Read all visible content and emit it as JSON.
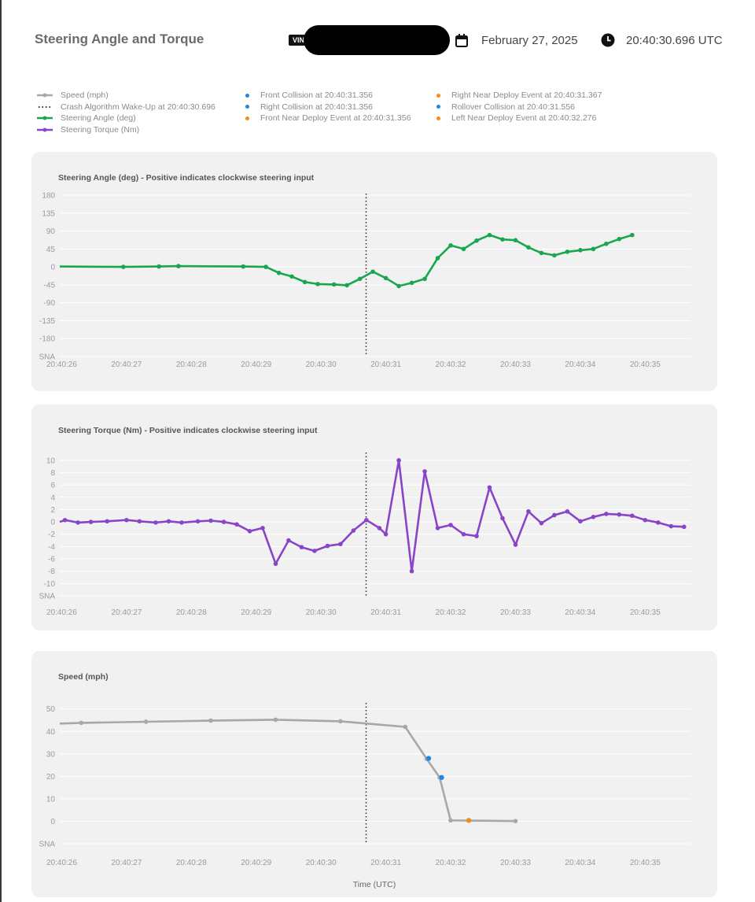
{
  "header": {
    "title": "Steering Angle and Torque",
    "vin_label": "VIN",
    "date": "February 27, 2025",
    "time": "20:40:30.696 UTC"
  },
  "legend": {
    "series": [
      {
        "label": "Speed (mph)",
        "color": "#a8a8a8",
        "style": "line"
      },
      {
        "label": "Crash Algorithm Wake-Up at 20:40:30.696",
        "color": "#333333",
        "style": "dotted"
      },
      {
        "label": "Steering Angle (deg)",
        "color": "#1aa64f",
        "style": "line"
      },
      {
        "label": "Steering Torque (Nm)",
        "color": "#8a44c8",
        "style": "line"
      }
    ],
    "events_col1": [
      {
        "label": "Front Collision at 20:40:31.356",
        "color": "#1e88e5"
      },
      {
        "label": "Right Collision at 20:40:31.356",
        "color": "#1e88e5"
      },
      {
        "label": "Front Near Deploy Event at 20:40:31.356",
        "color": "#f28c1a"
      }
    ],
    "events_col2": [
      {
        "label": "Right Near Deploy Event at 20:40:31.367",
        "color": "#f28c1a"
      },
      {
        "label": "Rollover Collision at 20:40:31.556",
        "color": "#1e88e5"
      },
      {
        "label": "Left Near Deploy Event at 20:40:32.276",
        "color": "#f28c1a"
      }
    ]
  },
  "chart_data": [
    {
      "type": "line",
      "title": "Steering Angle (deg) - Positive indicates clockwise steering input",
      "xlabel": "",
      "ylabel": "Steering Angle (deg)",
      "color": "#1aa64f",
      "x_ticks": [
        "20:40:26",
        "20:40:27",
        "20:40:28",
        "20:40:29",
        "20:40:30",
        "20:40:31",
        "20:40:32",
        "20:40:33",
        "20:40:34",
        "20:40:35"
      ],
      "x_tick_values": [
        26,
        27,
        28,
        29,
        30,
        31,
        32,
        33,
        34,
        35
      ],
      "xlim": [
        25.97,
        35.7
      ],
      "y_ticks": [
        "180",
        "135",
        "90",
        "45",
        "0",
        "-45",
        "-90",
        "-135",
        "-180",
        "SNA"
      ],
      "y_tick_values": [
        180,
        135,
        90,
        45,
        0,
        -45,
        -90,
        -135,
        -180,
        -225
      ],
      "ylim": [
        -225,
        180
      ],
      "wake_up_x": 30.696,
      "x": [
        25.97,
        26.95,
        27.5,
        27.8,
        28.8,
        29.15,
        29.35,
        29.55,
        29.75,
        29.95,
        30.2,
        30.4,
        30.6,
        30.8,
        31.0,
        31.2,
        31.4,
        31.6,
        31.8,
        32.0,
        32.2,
        32.4,
        32.6,
        32.8,
        33.0,
        33.2,
        33.4,
        33.6,
        33.8,
        34.0,
        34.2,
        34.4,
        34.6,
        34.8
      ],
      "values": [
        1,
        0,
        1,
        2,
        1,
        0,
        -15,
        -24,
        -38,
        -43,
        -44,
        -46,
        -30,
        -12,
        -28,
        -48,
        -40,
        -30,
        22,
        54,
        45,
        66,
        80,
        69,
        67,
        49,
        35,
        29,
        38,
        42,
        45,
        58,
        70,
        80
      ]
    },
    {
      "type": "line",
      "title": "Steering Torque (Nm) - Positive indicates clockwise steering input",
      "xlabel": "",
      "ylabel": "Steering Torque (Nm)",
      "color": "#8a44c8",
      "x_ticks": [
        "20:40:26",
        "20:40:27",
        "20:40:28",
        "20:40:29",
        "20:40:30",
        "20:40:31",
        "20:40:32",
        "20:40:33",
        "20:40:34",
        "20:40:35"
      ],
      "x_tick_values": [
        26,
        27,
        28,
        29,
        30,
        31,
        32,
        33,
        34,
        35
      ],
      "xlim": [
        25.97,
        35.7
      ],
      "y_ticks": [
        "10",
        "8",
        "6",
        "4",
        "2",
        "0",
        "-2",
        "-4",
        "-6",
        "-8",
        "-10",
        "SNA"
      ],
      "y_tick_values": [
        10,
        8,
        6,
        4,
        2,
        0,
        -2,
        -4,
        -6,
        -8,
        -10,
        -12
      ],
      "ylim": [
        -12,
        11
      ],
      "wake_up_x": 30.696,
      "x": [
        25.97,
        26.05,
        26.25,
        26.45,
        26.7,
        27.0,
        27.2,
        27.45,
        27.65,
        27.85,
        28.1,
        28.3,
        28.5,
        28.7,
        28.9,
        29.1,
        29.3,
        29.5,
        29.7,
        29.9,
        30.1,
        30.3,
        30.5,
        30.7,
        30.9,
        31.0,
        31.2,
        31.4,
        31.6,
        31.8,
        32.0,
        32.2,
        32.4,
        32.6,
        32.8,
        33.0,
        33.2,
        33.4,
        33.6,
        33.8,
        34.0,
        34.2,
        34.4,
        34.6,
        34.8,
        35.0,
        35.2,
        35.4,
        35.6
      ],
      "values": [
        0,
        0.3,
        -0.1,
        0,
        0.1,
        0.3,
        0.1,
        -0.1,
        0.1,
        -0.1,
        0.1,
        0.2,
        0,
        -0.4,
        -1.5,
        -1.0,
        -6.8,
        -3.0,
        -4.1,
        -4.7,
        -3.9,
        -3.6,
        -1.4,
        0.3,
        -1.0,
        -2.0,
        10,
        -8.0,
        8.2,
        -1.0,
        -0.5,
        -2.0,
        -2.3,
        5.6,
        0.6,
        -3.7,
        1.7,
        -0.2,
        1.1,
        1.7,
        0.1,
        0.8,
        1.3,
        1.2,
        1.0,
        0.3,
        -0.1,
        -0.7,
        -0.8
      ]
    },
    {
      "type": "line",
      "title": "Speed (mph)",
      "xlabel": "Time (UTC)",
      "ylabel": "Speed (mph)",
      "color": "#a8a8a8",
      "x_ticks": [
        "20:40:26",
        "20:40:27",
        "20:40:28",
        "20:40:29",
        "20:40:30",
        "20:40:31",
        "20:40:32",
        "20:40:33",
        "20:40:34",
        "20:40:35"
      ],
      "x_tick_values": [
        26,
        27,
        28,
        29,
        30,
        31,
        32,
        33,
        34,
        35
      ],
      "xlim": [
        25.97,
        35.7
      ],
      "y_ticks": [
        "50",
        "40",
        "30",
        "20",
        "10",
        "0",
        "SNA"
      ],
      "y_tick_values": [
        50,
        40,
        30,
        20,
        10,
        0,
        -10
      ],
      "ylim": [
        -10,
        52
      ],
      "wake_up_x": 30.696,
      "x": [
        25.97,
        26.3,
        27.3,
        28.3,
        29.3,
        30.3,
        31.3,
        31.63,
        31.83,
        32.0,
        33.0
      ],
      "values": [
        43.5,
        43.8,
        44.3,
        44.8,
        45.2,
        44.5,
        42.0,
        27.8,
        19.5,
        0.4,
        0.1
      ],
      "event_markers": [
        {
          "x": 31.66,
          "value": 28.0,
          "color": "#1e88e5",
          "label": "Front Collision"
        },
        {
          "x": 31.86,
          "value": 19.5,
          "color": "#1e88e5",
          "label": "Rollover Collision"
        },
        {
          "x": 32.28,
          "value": 0.4,
          "color": "#f28c1a",
          "label": "Left Near Deploy Event"
        }
      ]
    }
  ]
}
